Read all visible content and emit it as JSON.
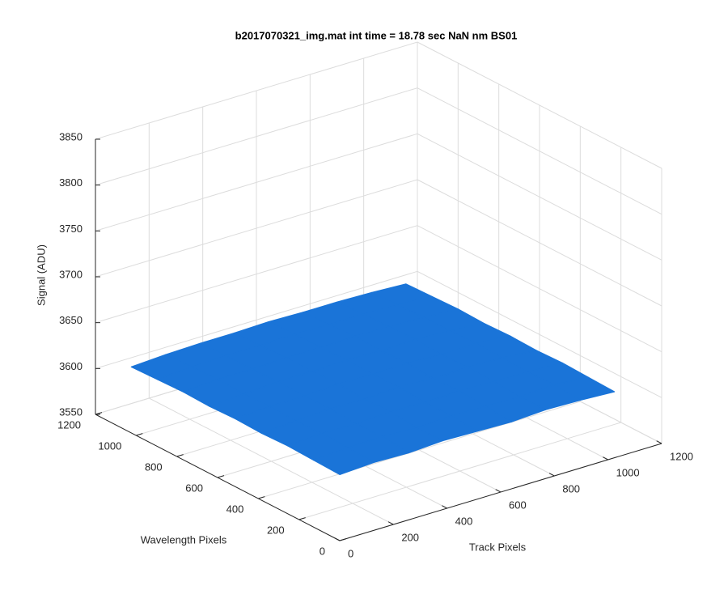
{
  "chart_data": {
    "type": "surface",
    "title": "b2017070321_img.mat int time = 18.78 sec  NaN nm BS01",
    "xlabel": "Track Pixels",
    "ylabel": "Wavelength Pixels",
    "zlabel": "Signal (ADU)",
    "xlim": [
      0,
      1200
    ],
    "xticks": [
      0,
      200,
      400,
      600,
      800,
      1000,
      1200
    ],
    "ylim": [
      0,
      1200
    ],
    "yticks": [
      0,
      200,
      400,
      600,
      800,
      1000,
      1200
    ],
    "zlim": [
      3550,
      3850
    ],
    "zticks": [
      3550,
      3600,
      3650,
      3700,
      3750,
      3800,
      3850
    ],
    "grid": true,
    "color": "#1a74d8",
    "x": [
      0,
      128,
      256,
      384,
      512,
      640,
      768,
      896,
      1024
    ],
    "y": [
      0,
      128,
      256,
      384,
      512,
      640,
      768,
      896,
      1024
    ],
    "z": [
      [
        3622,
        3624,
        3623,
        3625,
        3624,
        3623,
        3625,
        3624,
        3622
      ],
      [
        3623,
        3625,
        3626,
        3624,
        3626,
        3625,
        3624,
        3626,
        3623
      ],
      [
        3624,
        3626,
        3625,
        3627,
        3626,
        3627,
        3626,
        3625,
        3624
      ],
      [
        3623,
        3625,
        3627,
        3626,
        3628,
        3626,
        3627,
        3626,
        3623
      ],
      [
        3624,
        3626,
        3626,
        3628,
        3627,
        3628,
        3626,
        3627,
        3624
      ],
      [
        3623,
        3625,
        3627,
        3627,
        3628,
        3627,
        3628,
        3626,
        3623
      ],
      [
        3624,
        3626,
        3626,
        3627,
        3627,
        3628,
        3627,
        3626,
        3624
      ],
      [
        3623,
        3625,
        3626,
        3626,
        3627,
        3626,
        3626,
        3625,
        3623
      ],
      [
        3622,
        3624,
        3625,
        3625,
        3626,
        3625,
        3625,
        3624,
        3622
      ]
    ]
  }
}
